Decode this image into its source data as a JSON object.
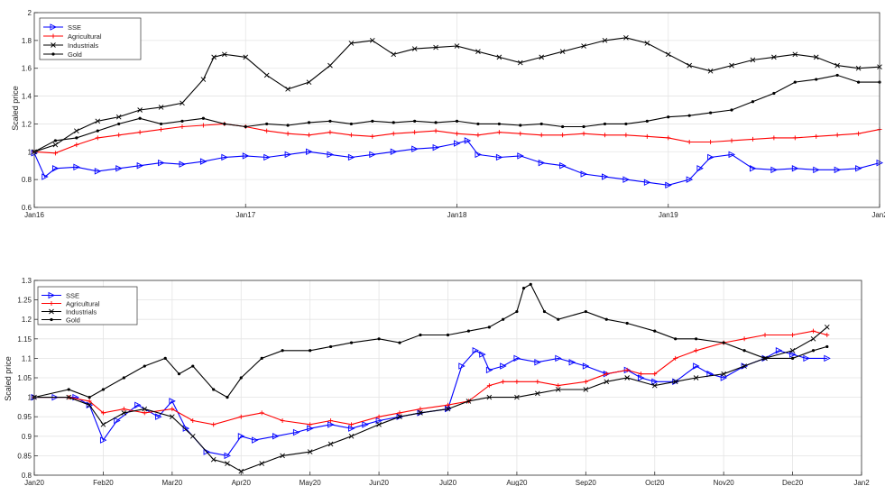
{
  "chart_data": [
    {
      "type": "line",
      "ylabel": "Scaled price",
      "xlabel": "",
      "title": "",
      "ylim": [
        0.6,
        2
      ],
      "yticks": [
        "0.6",
        "0.8",
        "1",
        "1.2",
        "1.4",
        "1.6",
        "1.8",
        "2"
      ],
      "xlim": [
        0,
        4
      ],
      "xticks": [
        {
          "x": 0,
          "label": "Jan16"
        },
        {
          "x": 1,
          "label": "Jan17"
        },
        {
          "x": 2,
          "label": "Jan18"
        },
        {
          "x": 3,
          "label": "Jan19"
        },
        {
          "x": 4,
          "label": "Jan2"
        }
      ],
      "grid": true,
      "legend": "top-left",
      "series": [
        {
          "name": "SSE",
          "color": "#0000ff",
          "marker": "triangle-right",
          "x": [
            0,
            0.05,
            0.1,
            0.2,
            0.3,
            0.4,
            0.5,
            0.6,
            0.7,
            0.8,
            0.9,
            1.0,
            1.1,
            1.2,
            1.3,
            1.4,
            1.5,
            1.6,
            1.7,
            1.8,
            1.9,
            2.0,
            2.05,
            2.1,
            2.2,
            2.3,
            2.4,
            2.5,
            2.6,
            2.7,
            2.8,
            2.9,
            3.0,
            3.1,
            3.15,
            3.2,
            3.3,
            3.4,
            3.5,
            3.6,
            3.7,
            3.8,
            3.9,
            4.0
          ],
          "y": [
            0.99,
            0.82,
            0.88,
            0.89,
            0.86,
            0.88,
            0.9,
            0.92,
            0.91,
            0.93,
            0.96,
            0.97,
            0.96,
            0.98,
            1.0,
            0.98,
            0.96,
            0.98,
            1.0,
            1.02,
            1.03,
            1.06,
            1.08,
            0.98,
            0.96,
            0.97,
            0.92,
            0.9,
            0.84,
            0.82,
            0.8,
            0.78,
            0.76,
            0.8,
            0.88,
            0.96,
            0.98,
            0.88,
            0.87,
            0.88,
            0.87,
            0.87,
            0.88,
            0.92
          ]
        },
        {
          "name": "Agricultural",
          "color": "#ff0000",
          "marker": "plus",
          "x": [
            0,
            0.1,
            0.2,
            0.3,
            0.4,
            0.5,
            0.6,
            0.7,
            0.8,
            0.9,
            1.0,
            1.1,
            1.2,
            1.3,
            1.4,
            1.5,
            1.6,
            1.7,
            1.8,
            1.9,
            2.0,
            2.1,
            2.2,
            2.3,
            2.4,
            2.5,
            2.6,
            2.7,
            2.8,
            2.9,
            3.0,
            3.1,
            3.2,
            3.3,
            3.4,
            3.5,
            3.6,
            3.7,
            3.8,
            3.9,
            4.0
          ],
          "y": [
            1.0,
            0.99,
            1.05,
            1.1,
            1.12,
            1.14,
            1.16,
            1.18,
            1.19,
            1.2,
            1.18,
            1.15,
            1.13,
            1.12,
            1.14,
            1.12,
            1.11,
            1.13,
            1.14,
            1.15,
            1.13,
            1.12,
            1.14,
            1.13,
            1.12,
            1.12,
            1.13,
            1.12,
            1.12,
            1.11,
            1.1,
            1.07,
            1.07,
            1.08,
            1.09,
            1.1,
            1.1,
            1.11,
            1.12,
            1.13,
            1.16
          ]
        },
        {
          "name": "Industrials",
          "color": "#000000",
          "marker": "cross",
          "x": [
            0,
            0.1,
            0.2,
            0.3,
            0.4,
            0.5,
            0.6,
            0.7,
            0.8,
            0.85,
            0.9,
            1.0,
            1.1,
            1.2,
            1.3,
            1.4,
            1.5,
            1.6,
            1.7,
            1.8,
            1.9,
            2.0,
            2.1,
            2.2,
            2.3,
            2.4,
            2.5,
            2.6,
            2.7,
            2.8,
            2.9,
            3.0,
            3.1,
            3.2,
            3.3,
            3.4,
            3.5,
            3.6,
            3.7,
            3.8,
            3.9,
            4.0
          ],
          "y": [
            1.0,
            1.05,
            1.15,
            1.22,
            1.25,
            1.3,
            1.32,
            1.35,
            1.52,
            1.68,
            1.7,
            1.68,
            1.55,
            1.45,
            1.5,
            1.62,
            1.78,
            1.8,
            1.7,
            1.74,
            1.75,
            1.76,
            1.72,
            1.68,
            1.64,
            1.68,
            1.72,
            1.76,
            1.8,
            1.82,
            1.78,
            1.7,
            1.62,
            1.58,
            1.62,
            1.66,
            1.68,
            1.7,
            1.68,
            1.62,
            1.6,
            1.61
          ]
        },
        {
          "name": "Gold",
          "color": "#000000",
          "marker": "dot",
          "x": [
            0,
            0.1,
            0.2,
            0.3,
            0.4,
            0.5,
            0.6,
            0.7,
            0.8,
            0.9,
            1.0,
            1.1,
            1.2,
            1.3,
            1.4,
            1.5,
            1.6,
            1.7,
            1.8,
            1.9,
            2.0,
            2.1,
            2.2,
            2.3,
            2.4,
            2.5,
            2.6,
            2.7,
            2.8,
            2.9,
            3.0,
            3.1,
            3.2,
            3.3,
            3.4,
            3.5,
            3.6,
            3.7,
            3.8,
            3.9,
            4.0
          ],
          "y": [
            1.0,
            1.08,
            1.1,
            1.15,
            1.2,
            1.24,
            1.2,
            1.22,
            1.24,
            1.2,
            1.18,
            1.2,
            1.19,
            1.21,
            1.22,
            1.2,
            1.22,
            1.21,
            1.22,
            1.21,
            1.22,
            1.2,
            1.2,
            1.19,
            1.2,
            1.18,
            1.18,
            1.2,
            1.2,
            1.22,
            1.25,
            1.26,
            1.28,
            1.3,
            1.36,
            1.42,
            1.5,
            1.52,
            1.55,
            1.5,
            1.5
          ]
        }
      ]
    },
    {
      "type": "line",
      "ylabel": "Scaled price",
      "xlabel": "",
      "title": "",
      "ylim": [
        0.8,
        1.3
      ],
      "yticks": [
        "0.8",
        "0.85",
        "0.9",
        "0.95",
        "1",
        "1.05",
        "1.1",
        "1.15",
        "1.2",
        "1.25",
        "1.3"
      ],
      "xlim": [
        0,
        12
      ],
      "xticks": [
        {
          "x": 0,
          "label": "Jan20"
        },
        {
          "x": 1,
          "label": "Feb20"
        },
        {
          "x": 2,
          "label": "Mar20"
        },
        {
          "x": 3,
          "label": "Apr20"
        },
        {
          "x": 4,
          "label": "May20"
        },
        {
          "x": 5,
          "label": "Jun20"
        },
        {
          "x": 6,
          "label": "Jul20"
        },
        {
          "x": 7,
          "label": "Aug20"
        },
        {
          "x": 8,
          "label": "Sep20"
        },
        {
          "x": 9,
          "label": "Oct20"
        },
        {
          "x": 10,
          "label": "Nov20"
        },
        {
          "x": 11,
          "label": "Dec20"
        },
        {
          "x": 12,
          "label": "Jan2"
        }
      ],
      "grid": true,
      "legend": "top-left",
      "series": [
        {
          "name": "SSE",
          "color": "#0000ff",
          "marker": "triangle-right",
          "x": [
            0,
            0.3,
            0.6,
            0.8,
            1.0,
            1.2,
            1.5,
            1.8,
            2.0,
            2.2,
            2.5,
            2.8,
            3.0,
            3.2,
            3.5,
            3.8,
            4.0,
            4.3,
            4.6,
            4.8,
            5.0,
            5.3,
            5.6,
            6.0,
            6.2,
            6.4,
            6.5,
            6.6,
            6.8,
            7.0,
            7.3,
            7.6,
            7.8,
            8.0,
            8.3,
            8.6,
            8.8,
            9.0,
            9.3,
            9.6,
            9.8,
            10.0,
            10.3,
            10.6,
            10.8,
            11.0,
            11.2,
            11.5
          ],
          "y": [
            1.0,
            1.0,
            1.0,
            0.98,
            0.89,
            0.94,
            0.98,
            0.95,
            0.99,
            0.92,
            0.86,
            0.85,
            0.9,
            0.89,
            0.9,
            0.91,
            0.92,
            0.93,
            0.92,
            0.93,
            0.94,
            0.95,
            0.96,
            0.97,
            1.08,
            1.12,
            1.11,
            1.07,
            1.08,
            1.1,
            1.09,
            1.1,
            1.09,
            1.08,
            1.06,
            1.07,
            1.05,
            1.04,
            1.04,
            1.08,
            1.06,
            1.05,
            1.08,
            1.1,
            1.12,
            1.11,
            1.1,
            1.1
          ]
        },
        {
          "name": "Agricultural",
          "color": "#ff0000",
          "marker": "plus",
          "x": [
            0,
            0.5,
            0.8,
            1.0,
            1.3,
            1.6,
            2.0,
            2.3,
            2.6,
            3.0,
            3.3,
            3.6,
            4.0,
            4.3,
            4.6,
            5.0,
            5.3,
            5.6,
            6.0,
            6.3,
            6.6,
            6.8,
            7.0,
            7.3,
            7.6,
            8.0,
            8.3,
            8.6,
            8.8,
            9.0,
            9.3,
            9.6,
            10.0,
            10.3,
            10.6,
            11.0,
            11.3,
            11.5
          ],
          "y": [
            1.0,
            1.0,
            0.99,
            0.96,
            0.97,
            0.96,
            0.97,
            0.94,
            0.93,
            0.95,
            0.96,
            0.94,
            0.93,
            0.94,
            0.93,
            0.95,
            0.96,
            0.97,
            0.98,
            0.99,
            1.03,
            1.04,
            1.04,
            1.04,
            1.03,
            1.04,
            1.06,
            1.07,
            1.06,
            1.06,
            1.1,
            1.12,
            1.14,
            1.15,
            1.16,
            1.16,
            1.17,
            1.16
          ]
        },
        {
          "name": "Industrials",
          "color": "#000000",
          "marker": "cross",
          "x": [
            0,
            0.5,
            0.8,
            1.0,
            1.3,
            1.6,
            2.0,
            2.3,
            2.6,
            2.8,
            3.0,
            3.3,
            3.6,
            4.0,
            4.3,
            4.6,
            5.0,
            5.3,
            5.6,
            6.0,
            6.3,
            6.6,
            7.0,
            7.3,
            7.6,
            8.0,
            8.3,
            8.6,
            9.0,
            9.3,
            9.6,
            10.0,
            10.3,
            10.6,
            11.0,
            11.3,
            11.5
          ],
          "y": [
            1.0,
            1.0,
            0.98,
            0.93,
            0.96,
            0.97,
            0.95,
            0.9,
            0.84,
            0.83,
            0.81,
            0.83,
            0.85,
            0.86,
            0.88,
            0.9,
            0.93,
            0.95,
            0.96,
            0.97,
            0.99,
            1.0,
            1.0,
            1.01,
            1.02,
            1.02,
            1.04,
            1.05,
            1.03,
            1.04,
            1.05,
            1.06,
            1.08,
            1.1,
            1.12,
            1.15,
            1.18
          ]
        },
        {
          "name": "Gold",
          "color": "#000000",
          "marker": "dot",
          "x": [
            0,
            0.5,
            0.8,
            1.0,
            1.3,
            1.6,
            1.9,
            2.1,
            2.3,
            2.6,
            2.8,
            3.0,
            3.3,
            3.6,
            4.0,
            4.3,
            4.6,
            5.0,
            5.3,
            5.6,
            6.0,
            6.3,
            6.6,
            6.8,
            7.0,
            7.1,
            7.2,
            7.4,
            7.6,
            8.0,
            8.3,
            8.6,
            9.0,
            9.3,
            9.6,
            10.0,
            10.3,
            10.6,
            11.0,
            11.3,
            11.5
          ],
          "y": [
            1.0,
            1.02,
            1.0,
            1.02,
            1.05,
            1.08,
            1.1,
            1.06,
            1.08,
            1.02,
            1.0,
            1.05,
            1.1,
            1.12,
            1.12,
            1.13,
            1.14,
            1.15,
            1.14,
            1.16,
            1.16,
            1.17,
            1.18,
            1.2,
            1.22,
            1.28,
            1.29,
            1.22,
            1.2,
            1.22,
            1.2,
            1.19,
            1.17,
            1.15,
            1.15,
            1.14,
            1.12,
            1.1,
            1.1,
            1.12,
            1.13
          ]
        }
      ]
    }
  ]
}
